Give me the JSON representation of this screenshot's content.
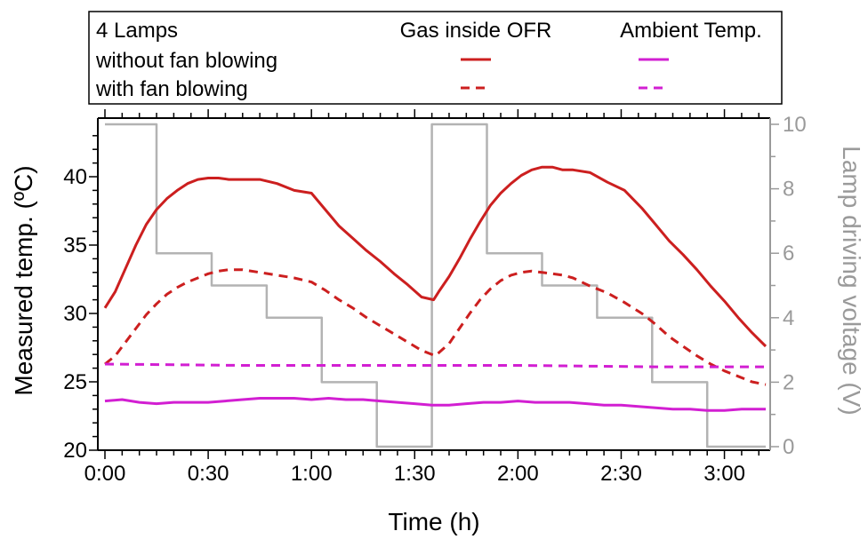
{
  "chart_data": {
    "type": "line",
    "legend": {
      "placement": "top",
      "title": "4 Lamps",
      "column_headers": [
        "Gas inside OFR",
        "Ambient Temp."
      ],
      "row_labels": [
        "without fan blowing",
        "with fan blowing"
      ]
    },
    "xlabel": "Time (h)",
    "ylabel_left": "Measured temp. (ºC)",
    "ylabel_right": "Lamp driving voltage (V)",
    "x_ticks": [
      "0:00",
      "0:30",
      "1:00",
      "1:30",
      "2:00",
      "2:30",
      "3:00"
    ],
    "x_tick_values_min": [
      0,
      30,
      60,
      90,
      120,
      150,
      180
    ],
    "xlim_min": [
      0,
      192
    ],
    "ylim_left": [
      20,
      44
    ],
    "y_ticks_left": [
      20,
      25,
      30,
      35,
      40
    ],
    "ylim_right": [
      0,
      10
    ],
    "y_ticks_right": [
      0,
      2,
      4,
      6,
      8,
      10
    ],
    "grid": false,
    "colors": {
      "gas": "#cc1f1f",
      "ambient": "#d21fd2",
      "voltage": "#b3b3b3"
    },
    "series": [
      {
        "name": "without fan blowing",
        "group": "Gas inside OFR",
        "axis": "left",
        "style": "solid",
        "color": "#cc1f1f",
        "x": [
          0,
          3,
          6,
          9,
          12,
          15,
          18,
          21,
          24,
          27,
          30,
          33,
          36,
          40,
          45,
          50,
          55,
          60,
          64,
          68,
          72,
          76,
          80,
          84,
          88,
          92,
          95.5,
          97,
          100,
          103,
          106,
          109,
          112,
          115,
          118,
          121,
          124,
          127,
          130,
          133,
          136,
          141,
          146,
          151,
          156,
          160,
          164,
          168,
          172,
          176,
          180,
          184,
          188,
          192
        ],
        "y": [
          30.4,
          31.6,
          33.3,
          35.0,
          36.5,
          37.6,
          38.4,
          39.0,
          39.5,
          39.8,
          39.9,
          39.9,
          39.8,
          39.8,
          39.8,
          39.5,
          39.0,
          38.8,
          37.6,
          36.4,
          35.5,
          34.6,
          33.8,
          32.9,
          32.1,
          31.2,
          31.0,
          31.6,
          32.7,
          34.0,
          35.4,
          36.7,
          37.9,
          38.8,
          39.5,
          40.1,
          40.5,
          40.7,
          40.7,
          40.5,
          40.5,
          40.3,
          39.6,
          39.0,
          37.7,
          36.5,
          35.3,
          34.3,
          33.2,
          32.0,
          30.9,
          29.7,
          28.6,
          27.6
        ]
      },
      {
        "name": "with fan blowing",
        "group": "Gas inside OFR",
        "axis": "left",
        "style": "dashed",
        "color": "#cc1f1f",
        "x": [
          0,
          3,
          6,
          9,
          12,
          15,
          18,
          21,
          24,
          27,
          30,
          33,
          36,
          40,
          45,
          50,
          55,
          60,
          64,
          68,
          72,
          76,
          80,
          84,
          88,
          92,
          96,
          100,
          103,
          106,
          109,
          112,
          115,
          118,
          121,
          124,
          127,
          130,
          133,
          136,
          141,
          146,
          151,
          156,
          160,
          164,
          168,
          172,
          176,
          180,
          184,
          188,
          192
        ],
        "y": [
          26.3,
          26.9,
          27.9,
          28.9,
          29.9,
          30.7,
          31.4,
          31.9,
          32.3,
          32.6,
          32.9,
          33.1,
          33.2,
          33.2,
          33.0,
          32.8,
          32.6,
          32.3,
          31.7,
          31.0,
          30.4,
          29.7,
          29.1,
          28.5,
          27.9,
          27.3,
          26.9,
          27.8,
          28.9,
          30.0,
          31.0,
          31.8,
          32.4,
          32.8,
          33.0,
          33.1,
          33.0,
          32.9,
          32.8,
          32.6,
          32.0,
          31.5,
          30.8,
          30.0,
          29.2,
          28.3,
          27.6,
          26.9,
          26.3,
          25.8,
          25.4,
          25.0,
          24.8
        ]
      },
      {
        "name": "without fan blowing",
        "group": "Ambient Temp.",
        "axis": "left",
        "style": "solid",
        "color": "#d21fd2",
        "x": [
          0,
          5,
          10,
          15,
          20,
          25,
          30,
          35,
          40,
          45,
          50,
          55,
          60,
          65,
          70,
          75,
          80,
          85,
          90,
          95,
          100,
          105,
          110,
          115,
          120,
          125,
          130,
          135,
          140,
          145,
          150,
          155,
          160,
          165,
          170,
          175,
          180,
          185,
          188,
          192
        ],
        "y": [
          23.6,
          23.7,
          23.5,
          23.4,
          23.5,
          23.5,
          23.5,
          23.6,
          23.7,
          23.8,
          23.8,
          23.8,
          23.7,
          23.8,
          23.7,
          23.7,
          23.6,
          23.5,
          23.4,
          23.3,
          23.3,
          23.4,
          23.5,
          23.5,
          23.6,
          23.5,
          23.5,
          23.5,
          23.4,
          23.3,
          23.3,
          23.2,
          23.1,
          23.0,
          23.0,
          22.9,
          22.9,
          23.0,
          23.0,
          23.0
        ]
      },
      {
        "name": "with fan blowing",
        "group": "Ambient Temp.",
        "axis": "left",
        "style": "dashed",
        "color": "#d21fd2",
        "x": [
          0,
          40,
          80,
          120,
          160,
          192
        ],
        "y": [
          26.3,
          26.2,
          26.2,
          26.2,
          26.1,
          26.1
        ]
      },
      {
        "name": "Lamp driving voltage",
        "axis": "right",
        "style": "step",
        "color": "#b3b3b3",
        "x": [
          0,
          15,
          15,
          31,
          31,
          47,
          47,
          63,
          63,
          79,
          79,
          95,
          95,
          96,
          96,
          111,
          111,
          127,
          127,
          143,
          143,
          159,
          159,
          175,
          175,
          192
        ],
        "y": [
          10,
          10,
          6,
          6,
          5,
          5,
          4,
          4,
          2,
          2,
          0,
          0,
          10,
          10,
          10,
          10,
          6,
          6,
          5,
          5,
          4,
          4,
          2,
          2,
          0,
          0
        ]
      }
    ]
  }
}
